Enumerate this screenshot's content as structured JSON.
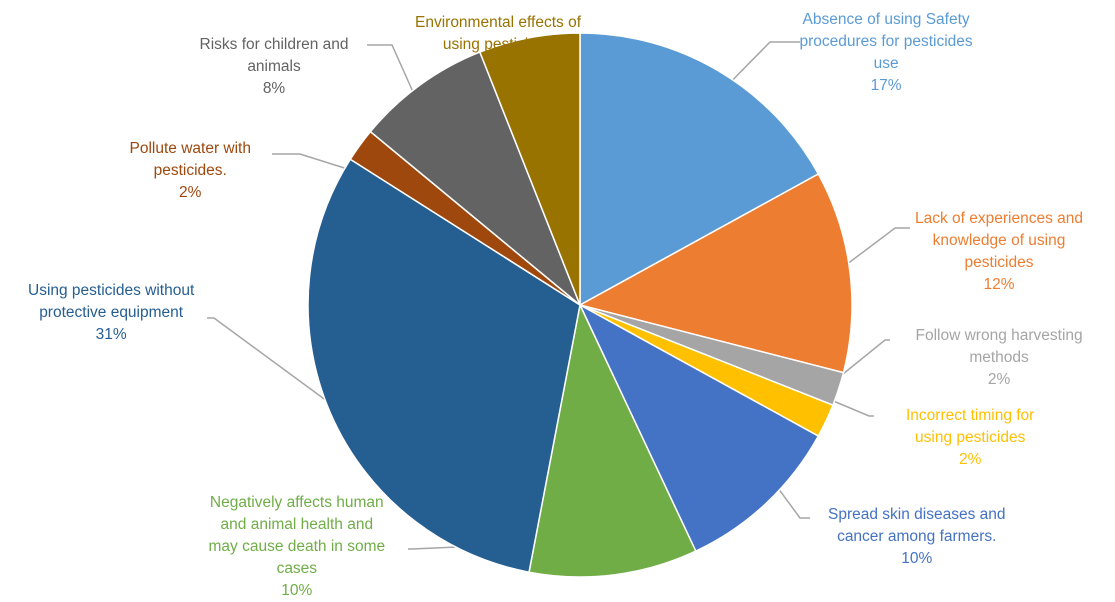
{
  "chart_data": {
    "type": "pie",
    "title": "",
    "slices": [
      {
        "label": [
          "Absence of using Safety",
          "procedures for pesticides",
          "use"
        ],
        "pct_label": "17%",
        "value": 17,
        "color": "#5b9bd5"
      },
      {
        "label": [
          "Lack of experiences and",
          "knowledge of using",
          "pesticides"
        ],
        "pct_label": "12%",
        "value": 12,
        "color": "#ed7d31"
      },
      {
        "label": [
          "Follow wrong harvesting",
          "methods"
        ],
        "pct_label": "2%",
        "value": 2,
        "color": "#a5a5a5"
      },
      {
        "label": [
          "Incorrect timing for",
          "using pesticides"
        ],
        "pct_label": "2%",
        "value": 2,
        "color": "#ffc000"
      },
      {
        "label": [
          "Spread skin diseases and",
          "cancer among farmers."
        ],
        "pct_label": "10%",
        "value": 10,
        "color": "#4472c4"
      },
      {
        "label": [
          "Negatively affects human",
          "and animal health and",
          "may cause death in some",
          "cases"
        ],
        "pct_label": "10%",
        "value": 10,
        "color": "#70ad47"
      },
      {
        "label": [
          "Using pesticides without",
          "protective equipment"
        ],
        "pct_label": "31%",
        "value": 31,
        "color": "#255e91"
      },
      {
        "label": [
          "Pollute water with",
          "pesticides."
        ],
        "pct_label": "2%",
        "value": 2,
        "color": "#9e480e"
      },
      {
        "label": [
          "Risks for children and",
          "animals"
        ],
        "pct_label": "8%",
        "value": 8,
        "color": "#636363"
      },
      {
        "label": [
          "Environmental effects of",
          "using pesticides"
        ],
        "pct_label": "6%",
        "value": 6,
        "color": "#997300"
      }
    ]
  }
}
